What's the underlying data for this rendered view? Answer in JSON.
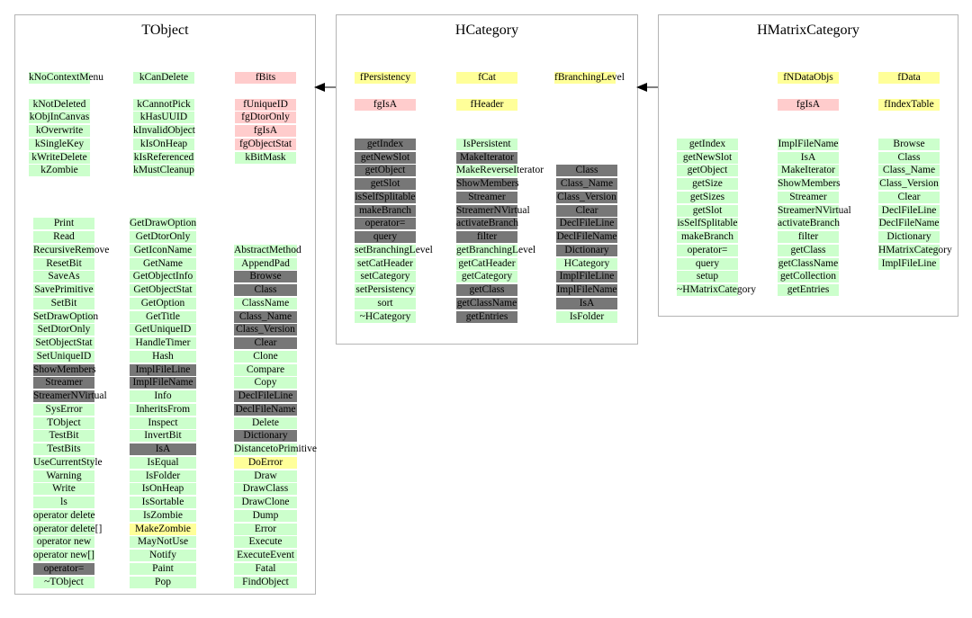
{
  "classes": [
    {
      "name": "TObject",
      "columns": [
        {
          "start_row": 0,
          "items": [
            {
              "t": "kNoContextMenu",
              "c": "green"
            },
            {
              "t": "",
              "c": "gap"
            },
            {
              "t": "kNotDeleted",
              "c": "green"
            },
            {
              "t": "kObjInCanvas",
              "c": "green"
            },
            {
              "t": "kOverwrite",
              "c": "green"
            },
            {
              "t": "kSingleKey",
              "c": "green"
            },
            {
              "t": "kWriteDelete",
              "c": "green"
            },
            {
              "t": "kZombie",
              "c": "green"
            }
          ]
        },
        {
          "start_row": 0,
          "items": [
            {
              "t": "kCanDelete",
              "c": "green"
            },
            {
              "t": "",
              "c": "gap"
            },
            {
              "t": "kCannotPick",
              "c": "green"
            },
            {
              "t": "kHasUUID",
              "c": "green"
            },
            {
              "t": "kInvalidObject",
              "c": "green"
            },
            {
              "t": "kIsOnHeap",
              "c": "green"
            },
            {
              "t": "kIsReferenced",
              "c": "green"
            },
            {
              "t": "kMustCleanup",
              "c": "green"
            }
          ]
        },
        {
          "start_row": 0,
          "items": [
            {
              "t": "fBits",
              "c": "pink"
            },
            {
              "t": "",
              "c": "gap"
            },
            {
              "t": "fUniqueID",
              "c": "pink"
            },
            {
              "t": "fgDtorOnly",
              "c": "pink"
            },
            {
              "t": "fgIsA",
              "c": "pink"
            },
            {
              "t": "fgObjectStat",
              "c": "pink"
            },
            {
              "t": "kBitMask",
              "c": "green"
            }
          ]
        },
        {
          "start_row": 11,
          "items": [
            {
              "t": "Print",
              "c": "green"
            },
            {
              "t": "Read",
              "c": "green"
            },
            {
              "t": "RecursiveRemove",
              "c": "green"
            },
            {
              "t": "ResetBit",
              "c": "green"
            },
            {
              "t": "SaveAs",
              "c": "green"
            },
            {
              "t": "SavePrimitive",
              "c": "green"
            },
            {
              "t": "SetBit",
              "c": "green"
            },
            {
              "t": "SetDrawOption",
              "c": "green"
            },
            {
              "t": "SetDtorOnly",
              "c": "green"
            },
            {
              "t": "SetObjectStat",
              "c": "green"
            },
            {
              "t": "SetUniqueID",
              "c": "green"
            },
            {
              "t": "ShowMembers",
              "c": "gray"
            },
            {
              "t": "Streamer",
              "c": "gray"
            },
            {
              "t": "StreamerNVirtual",
              "c": "gray"
            },
            {
              "t": "SysError",
              "c": "green"
            },
            {
              "t": "TObject",
              "c": "green"
            },
            {
              "t": "TestBit",
              "c": "green"
            },
            {
              "t": "TestBits",
              "c": "green"
            },
            {
              "t": "UseCurrentStyle",
              "c": "green"
            },
            {
              "t": "Warning",
              "c": "green"
            },
            {
              "t": "Write",
              "c": "green"
            },
            {
              "t": "ls",
              "c": "green"
            },
            {
              "t": "operator delete",
              "c": "green"
            },
            {
              "t": "operator delete[]",
              "c": "green"
            },
            {
              "t": "operator new",
              "c": "green"
            },
            {
              "t": "operator new[]",
              "c": "green"
            },
            {
              "t": "operator=",
              "c": "gray"
            },
            {
              "t": "~TObject",
              "c": "green"
            }
          ]
        },
        {
          "start_row": 11,
          "items": [
            {
              "t": "GetDrawOption",
              "c": "green"
            },
            {
              "t": "GetDtorOnly",
              "c": "green"
            },
            {
              "t": "GetIconName",
              "c": "green"
            },
            {
              "t": "GetName",
              "c": "green"
            },
            {
              "t": "GetObjectInfo",
              "c": "green"
            },
            {
              "t": "GetObjectStat",
              "c": "green"
            },
            {
              "t": "GetOption",
              "c": "green"
            },
            {
              "t": "GetTitle",
              "c": "green"
            },
            {
              "t": "GetUniqueID",
              "c": "green"
            },
            {
              "t": "HandleTimer",
              "c": "green"
            },
            {
              "t": "Hash",
              "c": "green"
            },
            {
              "t": "ImplFileLine",
              "c": "gray"
            },
            {
              "t": "ImplFileName",
              "c": "gray"
            },
            {
              "t": "Info",
              "c": "green"
            },
            {
              "t": "InheritsFrom",
              "c": "green"
            },
            {
              "t": "Inspect",
              "c": "green"
            },
            {
              "t": "InvertBit",
              "c": "green"
            },
            {
              "t": "IsA",
              "c": "gray"
            },
            {
              "t": "IsEqual",
              "c": "green"
            },
            {
              "t": "IsFolder",
              "c": "green"
            },
            {
              "t": "IsOnHeap",
              "c": "green"
            },
            {
              "t": "IsSortable",
              "c": "green"
            },
            {
              "t": "IsZombie",
              "c": "green"
            },
            {
              "t": "MakeZombie",
              "c": "yellow"
            },
            {
              "t": "MayNotUse",
              "c": "green"
            },
            {
              "t": "Notify",
              "c": "green"
            },
            {
              "t": "Paint",
              "c": "green"
            },
            {
              "t": "Pop",
              "c": "green"
            }
          ]
        },
        {
          "start_row": 13,
          "items": [
            {
              "t": "AbstractMethod",
              "c": "green"
            },
            {
              "t": "AppendPad",
              "c": "green"
            },
            {
              "t": "Browse",
              "c": "gray"
            },
            {
              "t": "Class",
              "c": "gray"
            },
            {
              "t": "ClassName",
              "c": "green"
            },
            {
              "t": "Class_Name",
              "c": "gray"
            },
            {
              "t": "Class_Version",
              "c": "gray"
            },
            {
              "t": "Clear",
              "c": "gray"
            },
            {
              "t": "Clone",
              "c": "green"
            },
            {
              "t": "Compare",
              "c": "green"
            },
            {
              "t": "Copy",
              "c": "green"
            },
            {
              "t": "DeclFileLine",
              "c": "gray"
            },
            {
              "t": "DeclFileName",
              "c": "gray"
            },
            {
              "t": "Delete",
              "c": "green"
            },
            {
              "t": "Dictionary",
              "c": "gray"
            },
            {
              "t": "DistancetoPrimitive",
              "c": "green"
            },
            {
              "t": "DoError",
              "c": "yellow"
            },
            {
              "t": "Draw",
              "c": "green"
            },
            {
              "t": "DrawClass",
              "c": "green"
            },
            {
              "t": "DrawClone",
              "c": "green"
            },
            {
              "t": "Dump",
              "c": "green"
            },
            {
              "t": "Error",
              "c": "green"
            },
            {
              "t": "Execute",
              "c": "green"
            },
            {
              "t": "ExecuteEvent",
              "c": "green"
            },
            {
              "t": "Fatal",
              "c": "green"
            },
            {
              "t": "FindObject",
              "c": "green"
            }
          ]
        }
      ]
    },
    {
      "name": "HCategory",
      "columns": [
        {
          "start_row": 0,
          "items": [
            {
              "t": "fPersistency",
              "c": "yellow"
            },
            {
              "t": "",
              "c": "gap"
            },
            {
              "t": "fgIsA",
              "c": "pink"
            }
          ]
        },
        {
          "start_row": 0,
          "items": [
            {
              "t": "fCat",
              "c": "yellow"
            },
            {
              "t": "",
              "c": "gap"
            },
            {
              "t": "fHeader",
              "c": "yellow"
            }
          ]
        },
        {
          "start_row": 0,
          "items": [
            {
              "t": "fBranchingLevel",
              "c": "yellow"
            }
          ]
        },
        {
          "start_row": 5,
          "items": [
            {
              "t": "getIndex",
              "c": "gray"
            },
            {
              "t": "getNewSlot",
              "c": "gray"
            },
            {
              "t": "getObject",
              "c": "gray"
            },
            {
              "t": "getSlot",
              "c": "gray"
            },
            {
              "t": "isSelfSplitable",
              "c": "gray"
            },
            {
              "t": "makeBranch",
              "c": "gray"
            },
            {
              "t": "operator=",
              "c": "gray"
            },
            {
              "t": "query",
              "c": "gray"
            },
            {
              "t": "setBranchingLevel",
              "c": "green"
            },
            {
              "t": "setCatHeader",
              "c": "green"
            },
            {
              "t": "setCategory",
              "c": "green"
            },
            {
              "t": "setPersistency",
              "c": "green"
            },
            {
              "t": "sort",
              "c": "green"
            },
            {
              "t": "~HCategory",
              "c": "green"
            }
          ]
        },
        {
          "start_row": 5,
          "items": [
            {
              "t": "IsPersistent",
              "c": "green"
            },
            {
              "t": "MakeIterator",
              "c": "gray"
            },
            {
              "t": "MakeReverseIterator",
              "c": "green"
            },
            {
              "t": "ShowMembers",
              "c": "gray"
            },
            {
              "t": "Streamer",
              "c": "gray"
            },
            {
              "t": "StreamerNVirtual",
              "c": "gray"
            },
            {
              "t": "activateBranch",
              "c": "gray"
            },
            {
              "t": "filter",
              "c": "gray"
            },
            {
              "t": "getBranchingLevel",
              "c": "green"
            },
            {
              "t": "getCatHeader",
              "c": "green"
            },
            {
              "t": "getCategory",
              "c": "green"
            },
            {
              "t": "getClass",
              "c": "gray"
            },
            {
              "t": "getClassName",
              "c": "gray"
            },
            {
              "t": "getEntries",
              "c": "gray"
            }
          ]
        },
        {
          "start_row": 7,
          "items": [
            {
              "t": "Class",
              "c": "gray"
            },
            {
              "t": "Class_Name",
              "c": "gray"
            },
            {
              "t": "Class_Version",
              "c": "gray"
            },
            {
              "t": "Clear",
              "c": "gray"
            },
            {
              "t": "DeclFileLine",
              "c": "gray"
            },
            {
              "t": "DeclFileName",
              "c": "gray"
            },
            {
              "t": "Dictionary",
              "c": "gray"
            },
            {
              "t": "HCategory",
              "c": "green"
            },
            {
              "t": "ImplFileLine",
              "c": "gray"
            },
            {
              "t": "ImplFileName",
              "c": "gray"
            },
            {
              "t": "IsA",
              "c": "gray"
            },
            {
              "t": "IsFolder",
              "c": "green"
            }
          ]
        }
      ]
    },
    {
      "name": "HMatrixCategory",
      "columns": [
        {
          "start_row": 0,
          "items": []
        },
        {
          "start_row": 0,
          "items": [
            {
              "t": "fNDataObjs",
              "c": "yellow"
            },
            {
              "t": "",
              "c": "gap"
            },
            {
              "t": "fgIsA",
              "c": "pink"
            }
          ]
        },
        {
          "start_row": 0,
          "items": [
            {
              "t": "fData",
              "c": "yellow"
            },
            {
              "t": "",
              "c": "gap"
            },
            {
              "t": "fIndexTable",
              "c": "yellow"
            }
          ]
        },
        {
          "start_row": 5,
          "items": [
            {
              "t": "getIndex",
              "c": "green"
            },
            {
              "t": "getNewSlot",
              "c": "green"
            },
            {
              "t": "getObject",
              "c": "green"
            },
            {
              "t": "getSize",
              "c": "green"
            },
            {
              "t": "getSizes",
              "c": "green"
            },
            {
              "t": "getSlot",
              "c": "green"
            },
            {
              "t": "isSelfSplitable",
              "c": "green"
            },
            {
              "t": "makeBranch",
              "c": "green"
            },
            {
              "t": "operator=",
              "c": "green"
            },
            {
              "t": "query",
              "c": "green"
            },
            {
              "t": "setup",
              "c": "green"
            },
            {
              "t": "~HMatrixCategory",
              "c": "green"
            }
          ]
        },
        {
          "start_row": 5,
          "items": [
            {
              "t": "ImplFileName",
              "c": "green"
            },
            {
              "t": "IsA",
              "c": "green"
            },
            {
              "t": "MakeIterator",
              "c": "green"
            },
            {
              "t": "ShowMembers",
              "c": "green"
            },
            {
              "t": "Streamer",
              "c": "green"
            },
            {
              "t": "StreamerNVirtual",
              "c": "green"
            },
            {
              "t": "activateBranch",
              "c": "green"
            },
            {
              "t": "filter",
              "c": "green"
            },
            {
              "t": "getClass",
              "c": "green"
            },
            {
              "t": "getClassName",
              "c": "green"
            },
            {
              "t": "getCollection",
              "c": "green"
            },
            {
              "t": "getEntries",
              "c": "green"
            }
          ]
        },
        {
          "start_row": 5,
          "items": [
            {
              "t": "Browse",
              "c": "green"
            },
            {
              "t": "Class",
              "c": "green"
            },
            {
              "t": "Class_Name",
              "c": "green"
            },
            {
              "t": "Class_Version",
              "c": "green"
            },
            {
              "t": "Clear",
              "c": "green"
            },
            {
              "t": "DeclFileLine",
              "c": "green"
            },
            {
              "t": "DeclFileName",
              "c": "green"
            },
            {
              "t": "Dictionary",
              "c": "green"
            },
            {
              "t": "HMatrixCategory",
              "c": "green"
            },
            {
              "t": "ImplFileLine",
              "c": "green"
            }
          ]
        }
      ]
    }
  ],
  "inheritance": [
    {
      "from": "HCategory",
      "to": "TObject"
    },
    {
      "from": "HMatrixCategory",
      "to": "HCategory"
    }
  ],
  "colors": {
    "data_member": "#ffcccc",
    "own_member": "#ffff99",
    "public_method": "#ccffcc",
    "overridden_method": "#777777",
    "border": "#b4b4b4"
  }
}
